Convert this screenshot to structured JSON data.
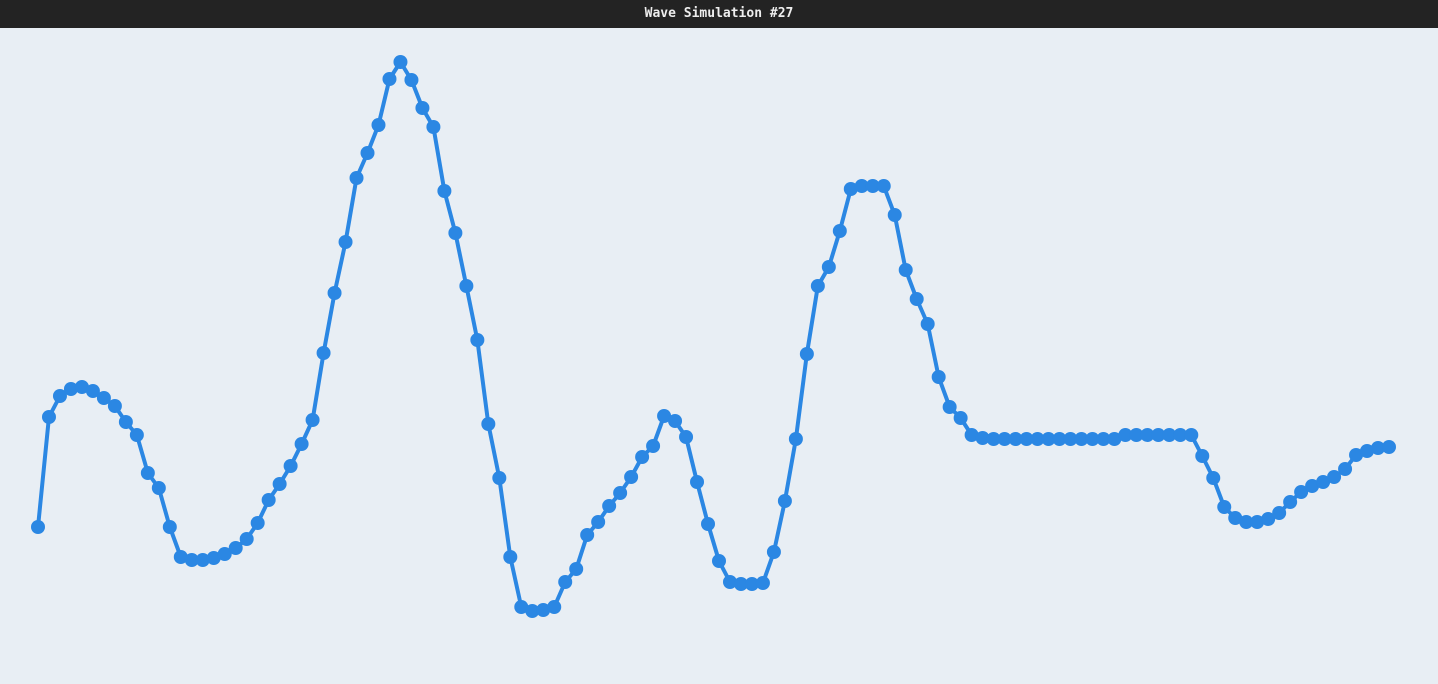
{
  "chart_data": {
    "type": "line",
    "title": "Wave Simulation #27",
    "color": "#2b87e3",
    "values": [
      157,
      267,
      288,
      295,
      297,
      293,
      286,
      278,
      262,
      249,
      211,
      196,
      157,
      127,
      124,
      124,
      126,
      130,
      136,
      145,
      161,
      184,
      200,
      218,
      240,
      264,
      331,
      391,
      442,
      506,
      531,
      559,
      605,
      622,
      604,
      576,
      557,
      493,
      451,
      398,
      344,
      260,
      206,
      127,
      77,
      73,
      74,
      77,
      102,
      115,
      149,
      162,
      178,
      191,
      207,
      227,
      238,
      268,
      263,
      247,
      202,
      160,
      123,
      102,
      100,
      100,
      101,
      132,
      183,
      245,
      330,
      398,
      417,
      453,
      495,
      498,
      498,
      498,
      469,
      414,
      385,
      360,
      307,
      277,
      266,
      249,
      246,
      245,
      245,
      245,
      245,
      245,
      245,
      245,
      245,
      245,
      245,
      245,
      245,
      249,
      249,
      249,
      249,
      249,
      249,
      249,
      228,
      206,
      177,
      166,
      162,
      162,
      165,
      171,
      182,
      192,
      198,
      202,
      207,
      215,
      229,
      233,
      236,
      237
    ]
  }
}
